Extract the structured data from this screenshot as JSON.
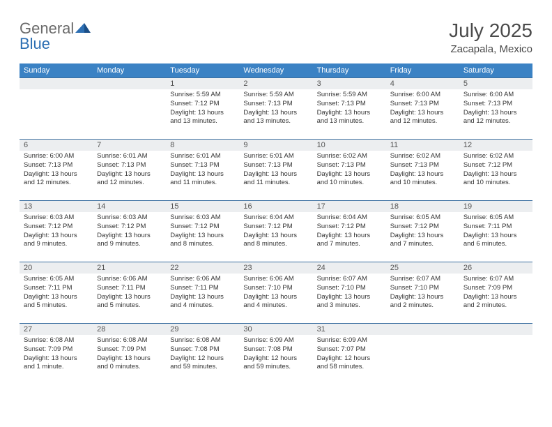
{
  "logo": {
    "part1": "General",
    "part2": "Blue",
    "part1_color": "#6a6a6a",
    "part2_color": "#2d6fb3"
  },
  "title": "July 2025",
  "location": "Zacapala, Mexico",
  "colors": {
    "header_bg": "#3b82c4",
    "header_text": "#ffffff",
    "daynum_bg": "#eceef0",
    "border": "#3b6fa0",
    "text": "#333333",
    "title_text": "#4a4a4a"
  },
  "day_names": [
    "Sunday",
    "Monday",
    "Tuesday",
    "Wednesday",
    "Thursday",
    "Friday",
    "Saturday"
  ],
  "weeks": [
    [
      {
        "day": "",
        "lines": []
      },
      {
        "day": "",
        "lines": []
      },
      {
        "day": "1",
        "lines": [
          "Sunrise: 5:59 AM",
          "Sunset: 7:12 PM",
          "Daylight: 13 hours",
          "and 13 minutes."
        ]
      },
      {
        "day": "2",
        "lines": [
          "Sunrise: 5:59 AM",
          "Sunset: 7:13 PM",
          "Daylight: 13 hours",
          "and 13 minutes."
        ]
      },
      {
        "day": "3",
        "lines": [
          "Sunrise: 5:59 AM",
          "Sunset: 7:13 PM",
          "Daylight: 13 hours",
          "and 13 minutes."
        ]
      },
      {
        "day": "4",
        "lines": [
          "Sunrise: 6:00 AM",
          "Sunset: 7:13 PM",
          "Daylight: 13 hours",
          "and 12 minutes."
        ]
      },
      {
        "day": "5",
        "lines": [
          "Sunrise: 6:00 AM",
          "Sunset: 7:13 PM",
          "Daylight: 13 hours",
          "and 12 minutes."
        ]
      }
    ],
    [
      {
        "day": "6",
        "lines": [
          "Sunrise: 6:00 AM",
          "Sunset: 7:13 PM",
          "Daylight: 13 hours",
          "and 12 minutes."
        ]
      },
      {
        "day": "7",
        "lines": [
          "Sunrise: 6:01 AM",
          "Sunset: 7:13 PM",
          "Daylight: 13 hours",
          "and 12 minutes."
        ]
      },
      {
        "day": "8",
        "lines": [
          "Sunrise: 6:01 AM",
          "Sunset: 7:13 PM",
          "Daylight: 13 hours",
          "and 11 minutes."
        ]
      },
      {
        "day": "9",
        "lines": [
          "Sunrise: 6:01 AM",
          "Sunset: 7:13 PM",
          "Daylight: 13 hours",
          "and 11 minutes."
        ]
      },
      {
        "day": "10",
        "lines": [
          "Sunrise: 6:02 AM",
          "Sunset: 7:13 PM",
          "Daylight: 13 hours",
          "and 10 minutes."
        ]
      },
      {
        "day": "11",
        "lines": [
          "Sunrise: 6:02 AM",
          "Sunset: 7:13 PM",
          "Daylight: 13 hours",
          "and 10 minutes."
        ]
      },
      {
        "day": "12",
        "lines": [
          "Sunrise: 6:02 AM",
          "Sunset: 7:12 PM",
          "Daylight: 13 hours",
          "and 10 minutes."
        ]
      }
    ],
    [
      {
        "day": "13",
        "lines": [
          "Sunrise: 6:03 AM",
          "Sunset: 7:12 PM",
          "Daylight: 13 hours",
          "and 9 minutes."
        ]
      },
      {
        "day": "14",
        "lines": [
          "Sunrise: 6:03 AM",
          "Sunset: 7:12 PM",
          "Daylight: 13 hours",
          "and 9 minutes."
        ]
      },
      {
        "day": "15",
        "lines": [
          "Sunrise: 6:03 AM",
          "Sunset: 7:12 PM",
          "Daylight: 13 hours",
          "and 8 minutes."
        ]
      },
      {
        "day": "16",
        "lines": [
          "Sunrise: 6:04 AM",
          "Sunset: 7:12 PM",
          "Daylight: 13 hours",
          "and 8 minutes."
        ]
      },
      {
        "day": "17",
        "lines": [
          "Sunrise: 6:04 AM",
          "Sunset: 7:12 PM",
          "Daylight: 13 hours",
          "and 7 minutes."
        ]
      },
      {
        "day": "18",
        "lines": [
          "Sunrise: 6:05 AM",
          "Sunset: 7:12 PM",
          "Daylight: 13 hours",
          "and 7 minutes."
        ]
      },
      {
        "day": "19",
        "lines": [
          "Sunrise: 6:05 AM",
          "Sunset: 7:11 PM",
          "Daylight: 13 hours",
          "and 6 minutes."
        ]
      }
    ],
    [
      {
        "day": "20",
        "lines": [
          "Sunrise: 6:05 AM",
          "Sunset: 7:11 PM",
          "Daylight: 13 hours",
          "and 5 minutes."
        ]
      },
      {
        "day": "21",
        "lines": [
          "Sunrise: 6:06 AM",
          "Sunset: 7:11 PM",
          "Daylight: 13 hours",
          "and 5 minutes."
        ]
      },
      {
        "day": "22",
        "lines": [
          "Sunrise: 6:06 AM",
          "Sunset: 7:11 PM",
          "Daylight: 13 hours",
          "and 4 minutes."
        ]
      },
      {
        "day": "23",
        "lines": [
          "Sunrise: 6:06 AM",
          "Sunset: 7:10 PM",
          "Daylight: 13 hours",
          "and 4 minutes."
        ]
      },
      {
        "day": "24",
        "lines": [
          "Sunrise: 6:07 AM",
          "Sunset: 7:10 PM",
          "Daylight: 13 hours",
          "and 3 minutes."
        ]
      },
      {
        "day": "25",
        "lines": [
          "Sunrise: 6:07 AM",
          "Sunset: 7:10 PM",
          "Daylight: 13 hours",
          "and 2 minutes."
        ]
      },
      {
        "day": "26",
        "lines": [
          "Sunrise: 6:07 AM",
          "Sunset: 7:09 PM",
          "Daylight: 13 hours",
          "and 2 minutes."
        ]
      }
    ],
    [
      {
        "day": "27",
        "lines": [
          "Sunrise: 6:08 AM",
          "Sunset: 7:09 PM",
          "Daylight: 13 hours",
          "and 1 minute."
        ]
      },
      {
        "day": "28",
        "lines": [
          "Sunrise: 6:08 AM",
          "Sunset: 7:09 PM",
          "Daylight: 13 hours",
          "and 0 minutes."
        ]
      },
      {
        "day": "29",
        "lines": [
          "Sunrise: 6:08 AM",
          "Sunset: 7:08 PM",
          "Daylight: 12 hours",
          "and 59 minutes."
        ]
      },
      {
        "day": "30",
        "lines": [
          "Sunrise: 6:09 AM",
          "Sunset: 7:08 PM",
          "Daylight: 12 hours",
          "and 59 minutes."
        ]
      },
      {
        "day": "31",
        "lines": [
          "Sunrise: 6:09 AM",
          "Sunset: 7:07 PM",
          "Daylight: 12 hours",
          "and 58 minutes."
        ]
      },
      {
        "day": "",
        "lines": []
      },
      {
        "day": "",
        "lines": []
      }
    ]
  ]
}
